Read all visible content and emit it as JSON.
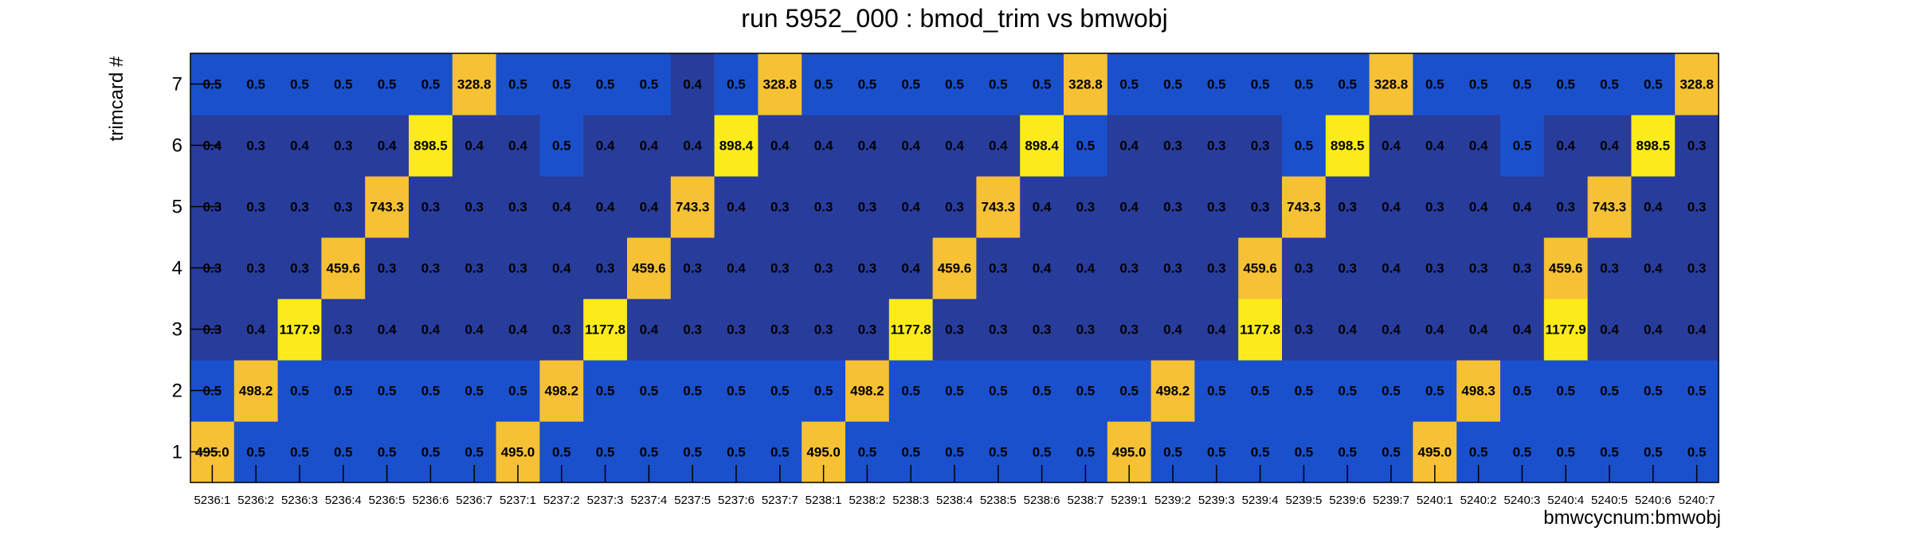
{
  "chart_data": {
    "type": "heatmap",
    "title": "run 5952_000 : bmod_trim vs bmwobj",
    "xlabel": "bmwcycnum:bmwobj",
    "ylabel": "trimcard #",
    "x_categories": [
      "5236:1",
      "5236:2",
      "5236:3",
      "5236:4",
      "5236:5",
      "5236:6",
      "5236:7",
      "5237:1",
      "5237:2",
      "5237:3",
      "5237:4",
      "5237:5",
      "5237:6",
      "5237:7",
      "5238:1",
      "5238:2",
      "5238:3",
      "5238:4",
      "5238:5",
      "5238:6",
      "5238:7",
      "5239:1",
      "5239:2",
      "5239:3",
      "5239:4",
      "5239:5",
      "5239:6",
      "5239:7",
      "5240:1",
      "5240:2",
      "5240:3",
      "5240:4",
      "5240:5",
      "5240:6",
      "5240:7"
    ],
    "y_categories": [
      "1",
      "2",
      "3",
      "4",
      "5",
      "6",
      "7"
    ],
    "rows": [
      {
        "y": "1",
        "values": [
          495.0,
          0.5,
          0.5,
          0.5,
          0.5,
          0.5,
          0.5,
          495.0,
          0.5,
          0.5,
          0.5,
          0.5,
          0.5,
          0.5,
          495.0,
          0.5,
          0.5,
          0.5,
          0.5,
          0.5,
          0.5,
          495.0,
          0.5,
          0.5,
          0.5,
          0.5,
          0.5,
          0.5,
          495.0,
          0.5,
          0.5,
          0.5,
          0.5,
          0.5,
          0.5
        ]
      },
      {
        "y": "2",
        "values": [
          0.5,
          498.2,
          0.5,
          0.5,
          0.5,
          0.5,
          0.5,
          0.5,
          498.2,
          0.5,
          0.5,
          0.5,
          0.5,
          0.5,
          0.5,
          498.2,
          0.5,
          0.5,
          0.5,
          0.5,
          0.5,
          0.5,
          498.2,
          0.5,
          0.5,
          0.5,
          0.5,
          0.5,
          0.5,
          498.3,
          0.5,
          0.5,
          0.5,
          0.5,
          0.5
        ]
      },
      {
        "y": "3",
        "values": [
          0.3,
          0.4,
          1177.9,
          0.3,
          0.4,
          0.4,
          0.4,
          0.4,
          0.3,
          1177.8,
          0.4,
          0.3,
          0.3,
          0.3,
          0.3,
          0.3,
          1177.8,
          0.3,
          0.3,
          0.3,
          0.3,
          0.3,
          0.4,
          0.4,
          1177.8,
          0.3,
          0.4,
          0.4,
          0.4,
          0.4,
          0.4,
          1177.9,
          0.4,
          0.4,
          0.4
        ]
      },
      {
        "y": "4",
        "values": [
          0.3,
          0.3,
          0.3,
          459.6,
          0.3,
          0.3,
          0.3,
          0.3,
          0.4,
          0.3,
          459.6,
          0.3,
          0.4,
          0.3,
          0.3,
          0.3,
          0.4,
          459.6,
          0.3,
          0.4,
          0.4,
          0.3,
          0.3,
          0.3,
          459.6,
          0.3,
          0.3,
          0.4,
          0.3,
          0.3,
          0.3,
          459.6,
          0.3,
          0.4,
          0.3
        ]
      },
      {
        "y": "5",
        "values": [
          0.3,
          0.3,
          0.3,
          0.3,
          743.3,
          0.3,
          0.3,
          0.3,
          0.4,
          0.4,
          0.4,
          743.3,
          0.4,
          0.3,
          0.3,
          0.3,
          0.4,
          0.3,
          743.3,
          0.4,
          0.3,
          0.4,
          0.3,
          0.3,
          0.3,
          743.3,
          0.3,
          0.4,
          0.3,
          0.4,
          0.4,
          0.3,
          743.3,
          0.4,
          0.3
        ]
      },
      {
        "y": "6",
        "values": [
          0.4,
          0.3,
          0.4,
          0.3,
          0.4,
          898.5,
          0.4,
          0.4,
          0.5,
          0.4,
          0.4,
          0.4,
          898.4,
          0.4,
          0.4,
          0.4,
          0.4,
          0.4,
          0.4,
          898.4,
          0.5,
          0.4,
          0.3,
          0.3,
          0.3,
          0.5,
          898.5,
          0.4,
          0.4,
          0.4,
          0.5,
          0.4,
          0.4,
          898.5,
          0.3
        ]
      },
      {
        "y": "7",
        "values": [
          0.5,
          0.5,
          0.5,
          0.5,
          0.5,
          0.5,
          328.8,
          0.5,
          0.5,
          0.5,
          0.5,
          0.4,
          0.5,
          328.8,
          0.5,
          0.5,
          0.5,
          0.5,
          0.5,
          0.5,
          328.8,
          0.5,
          0.5,
          0.5,
          0.5,
          0.5,
          0.5,
          328.8,
          0.5,
          0.5,
          0.5,
          0.5,
          0.5,
          0.5,
          328.8
        ]
      }
    ],
    "grid": false,
    "colors": {
      "low": "#283c9c",
      "mid": "#1a50cc",
      "high_orange": "#f6c134",
      "high_yellow": "#fbeb1a",
      "background": "#ffffff"
    }
  }
}
